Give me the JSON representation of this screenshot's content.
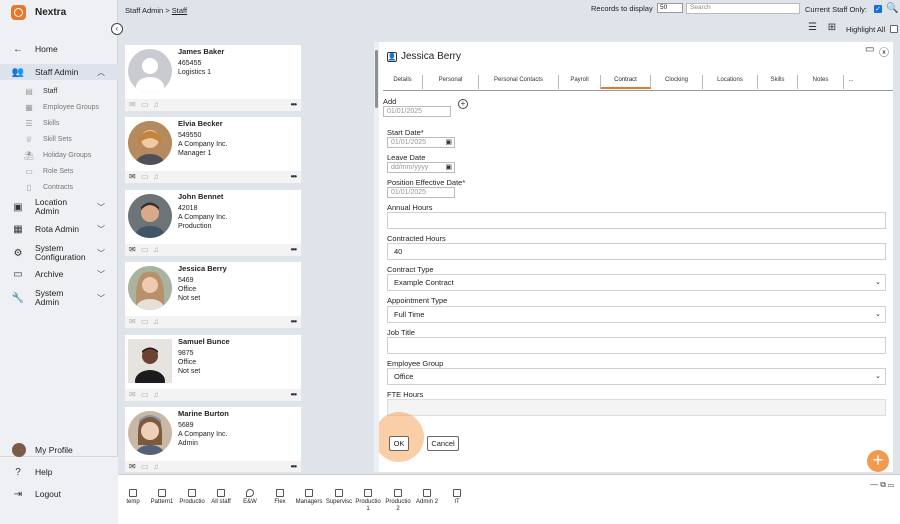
{
  "app": {
    "name": "Nextra"
  },
  "breadcrumb": {
    "parent": "Staff Admin",
    "separator": ">",
    "current": "Staff"
  },
  "topbar": {
    "records_label": "Records to display",
    "records_value": "50",
    "search_placeholder": "Search",
    "current_only_label": "Current Staff Only:",
    "current_only_checked": true,
    "highlight_all_label": "Highlight All"
  },
  "sidebar": {
    "items": [
      {
        "label": "Home",
        "icon": "arrow-left-icon"
      },
      {
        "label": "Staff Admin",
        "icon": "users-icon",
        "expanded": true
      },
      {
        "label": "Location Admin",
        "icon": "location-icon"
      },
      {
        "label": "Rota Admin",
        "icon": "calendar-icon"
      },
      {
        "label": "System Configuration",
        "icon": "gear-icon"
      },
      {
        "label": "Archive",
        "icon": "archive-icon"
      },
      {
        "label": "System Admin",
        "icon": "wrench-icon"
      }
    ],
    "sub_items": [
      {
        "label": "Staff",
        "active": true
      },
      {
        "label": "Employee Groups"
      },
      {
        "label": "Skills"
      },
      {
        "label": "Skill Sets"
      },
      {
        "label": "Holiday Groups"
      },
      {
        "label": "Role Sets"
      },
      {
        "label": "Contracts"
      }
    ],
    "bottom": [
      {
        "label": "My Profile"
      },
      {
        "label": "Help"
      },
      {
        "label": "Logout"
      }
    ]
  },
  "staff": [
    {
      "name": "James Baker",
      "id": "465455",
      "line2": "Logistics 1",
      "line3": ""
    },
    {
      "name": "Elvia Becker",
      "id": "549550",
      "line2": "A Company Inc.",
      "line3": "Manager 1"
    },
    {
      "name": "John Bennet",
      "id": "42018",
      "line2": "A Company Inc.",
      "line3": "Production"
    },
    {
      "name": "Jessica Berry",
      "id": "5469",
      "line2": "Office",
      "line3": "Not set"
    },
    {
      "name": "Samuel Bunce",
      "id": "9875",
      "line2": "Office",
      "line3": "Not set"
    },
    {
      "name": "Marine Burton",
      "id": "5689",
      "line2": "A Company Inc.",
      "line3": "Admin"
    }
  ],
  "panel": {
    "title": "Jessica Berry",
    "tabs": [
      "Details",
      "Personal",
      "Personal Contacts",
      "Payroll",
      "Contract",
      "Clocking",
      "Locations",
      "Skills",
      "Notes",
      "..."
    ],
    "active_tab": "Contract",
    "add_label": "Add",
    "add_date": "01/01/2025",
    "fields": {
      "start_date_label": "Start Date*",
      "start_date_value": "01/01/2025",
      "leave_date_label": "Leave Date",
      "leave_date_placeholder": "dd/mm/yyyy",
      "position_date_label": "Position Effective Date*",
      "position_date_value": "01/01/2025",
      "annual_hours_label": "Annual Hours",
      "annual_hours_value": "",
      "contracted_hours_label": "Contracted Hours",
      "contracted_hours_value": "40",
      "contract_type_label": "Contract Type",
      "contract_type_value": "Example Contract",
      "appointment_type_label": "Appointment Type",
      "appointment_type_value": "Full Time",
      "job_title_label": "Job Title",
      "job_title_value": "",
      "employee_group_label": "Employee Group",
      "employee_group_value": "Office",
      "fte_hours_label": "FTE Hours",
      "fte_hours_value": ""
    },
    "ok_label": "OK",
    "cancel_label": "Cancel"
  },
  "groups": [
    {
      "line1": "temp",
      "line2": ""
    },
    {
      "line1": "Pattern1",
      "line2": ""
    },
    {
      "line1": "Productio",
      "line2": ""
    },
    {
      "line1": "All staff",
      "line2": ""
    },
    {
      "line1": "E&W",
      "line2": ""
    },
    {
      "line1": "Flex",
      "line2": ""
    },
    {
      "line1": "Managers",
      "line2": ""
    },
    {
      "line1": "Supervisc",
      "line2": ""
    },
    {
      "line1": "Productio",
      "line2": "1"
    },
    {
      "line1": "Productio",
      "line2": "2"
    },
    {
      "line1": "Admin 2",
      "line2": ""
    },
    {
      "line1": "IT",
      "line2": ""
    }
  ],
  "colors": {
    "accent": "#e8772e",
    "checkbox": "#1a6ed8",
    "fab": "#f29a4f"
  }
}
